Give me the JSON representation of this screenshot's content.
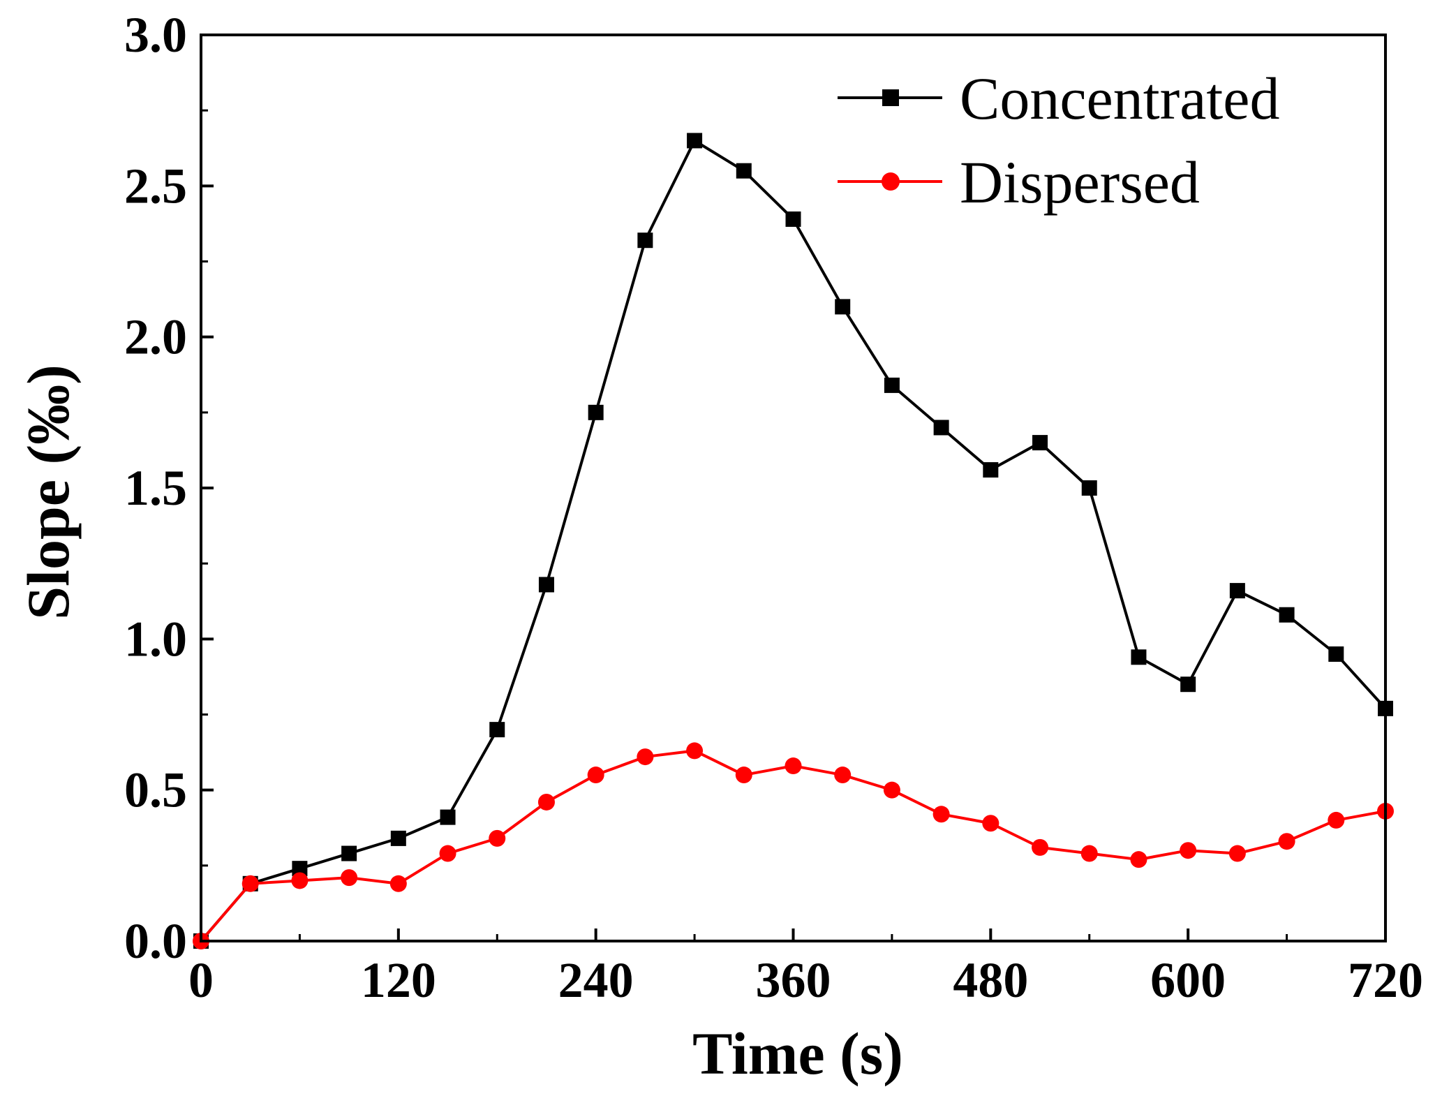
{
  "chart_data": {
    "type": "line",
    "title": "",
    "xlabel": "Time (s)",
    "ylabel": "Slope (‰)",
    "xlim": [
      0,
      720
    ],
    "ylim": [
      0,
      3.0
    ],
    "x_ticks": [
      "0",
      "120",
      "240",
      "360",
      "480",
      "600",
      "720"
    ],
    "y_ticks": [
      "0.0",
      "0.5",
      "1.0",
      "1.5",
      "2.0",
      "2.5",
      "3.0"
    ],
    "grid": false,
    "legend_position": "top-right",
    "x": [
      0,
      30,
      60,
      90,
      120,
      150,
      180,
      210,
      240,
      270,
      300,
      330,
      360,
      390,
      420,
      450,
      480,
      510,
      540,
      570,
      600,
      630,
      660,
      690,
      720
    ],
    "series": [
      {
        "name": "Concentrated",
        "marker": "square",
        "color": "#000000",
        "values": [
          0.0,
          0.19,
          0.24,
          0.29,
          0.34,
          0.41,
          0.7,
          1.18,
          1.75,
          2.32,
          2.65,
          2.55,
          2.39,
          2.1,
          1.84,
          1.7,
          1.56,
          1.65,
          1.5,
          0.94,
          0.85,
          1.16,
          1.08,
          0.95,
          0.77
        ]
      },
      {
        "name": "Dispersed",
        "marker": "circle",
        "color": "#ff0000",
        "values": [
          0.0,
          0.19,
          0.2,
          0.21,
          0.19,
          0.29,
          0.34,
          0.46,
          0.55,
          0.61,
          0.63,
          0.55,
          0.58,
          0.55,
          0.5,
          0.42,
          0.39,
          0.31,
          0.29,
          0.27,
          0.3,
          0.29,
          0.33,
          0.4,
          0.43
        ]
      }
    ]
  }
}
